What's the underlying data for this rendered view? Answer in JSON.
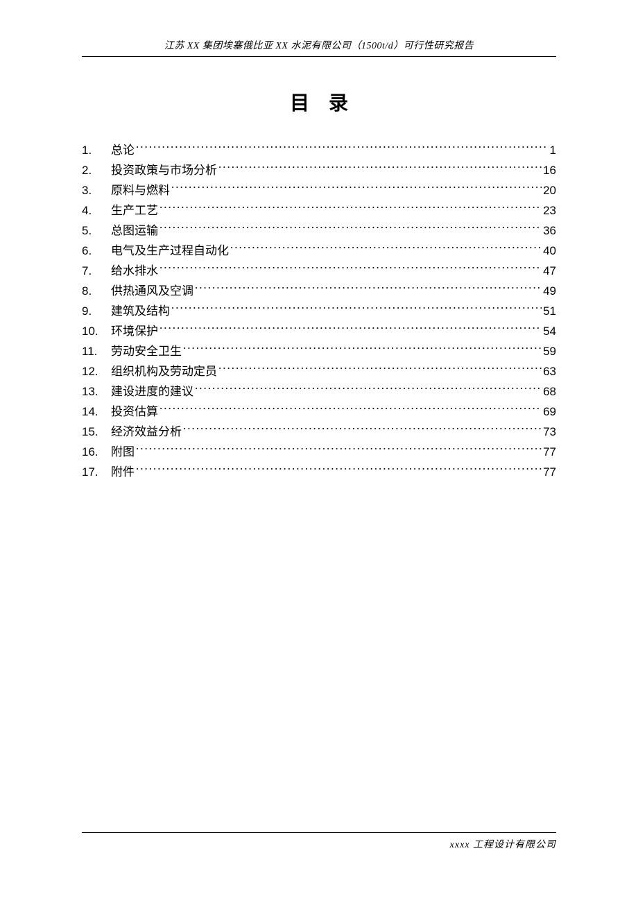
{
  "header_text": "江苏 XX 集团埃塞俄比亚 XX 水泥有限公司（1500t/d）可行性研究报告",
  "title": "目录",
  "toc_entries": [
    {
      "num": "1.",
      "label": "总论",
      "page": "1"
    },
    {
      "num": "2.",
      "label": "投资政策与市场分析",
      "page": "16"
    },
    {
      "num": "3.",
      "label": "原料与燃料",
      "page": "20"
    },
    {
      "num": "4.",
      "label": "生产工艺",
      "page": "23"
    },
    {
      "num": "5.",
      "label": "总图运输",
      "page": "36"
    },
    {
      "num": "6.",
      "label": "电气及生产过程自动化",
      "page": "40"
    },
    {
      "num": "7.",
      "label": "给水排水",
      "page": "47"
    },
    {
      "num": "8.",
      "label": "供热通风及空调",
      "page": "49"
    },
    {
      "num": "9.",
      "label": "建筑及结构",
      "page": "51"
    },
    {
      "num": "10.",
      "label": "环境保护",
      "page": "54"
    },
    {
      "num": "11.",
      "label": "劳动安全卫生",
      "page": "59"
    },
    {
      "num": "12.",
      "label": "组织机构及劳动定员",
      "page": "63"
    },
    {
      "num": "13.",
      "label": "建设进度的建议",
      "page": "68"
    },
    {
      "num": "14.",
      "label": "投资估算",
      "page": "69"
    },
    {
      "num": "15.",
      "label": "经济效益分析",
      "page": "73"
    },
    {
      "num": "16.",
      "label": "附图",
      "page": "77"
    },
    {
      "num": "17.",
      "label": "附件",
      "page": "77"
    }
  ],
  "footer_text": "xxxx 工程设计有限公司",
  "colors": {
    "text": "#000000",
    "background": "#ffffff",
    "border": "#000000"
  },
  "typography": {
    "header_fontsize": 14,
    "title_fontsize": 28,
    "toc_fontsize": 17,
    "footer_fontsize": 14
  }
}
